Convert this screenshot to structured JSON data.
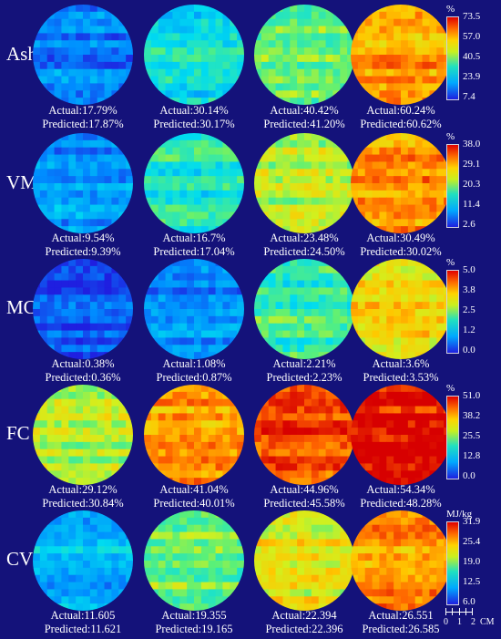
{
  "rows": [
    {
      "label": "Ash",
      "unit": "%",
      "ticks": [
        "73.5",
        "57.0",
        "40.5",
        "23.9",
        "7.4"
      ],
      "samples": [
        {
          "actual": "Actual:17.79%",
          "predicted": "Predicted:17.87%",
          "level": 0.16
        },
        {
          "actual": "Actual:30.14%",
          "predicted": "Predicted:30.17%",
          "level": 0.35
        },
        {
          "actual": "Actual:40.42%",
          "predicted": "Predicted:41.20%",
          "level": 0.5
        },
        {
          "actual": "Actual:60.24%",
          "predicted": "Predicted:60.62%",
          "level": 0.8
        }
      ]
    },
    {
      "label": "VM",
      "unit": "%",
      "ticks": [
        "38.0",
        "29.1",
        "20.3",
        "11.4",
        "2.6"
      ],
      "samples": [
        {
          "actual": "Actual:9.54%",
          "predicted": "Predicted:9.39%",
          "level": 0.2
        },
        {
          "actual": "Actual:16.7%",
          "predicted": "Predicted:17.04%",
          "level": 0.4
        },
        {
          "actual": "Actual:23.48%",
          "predicted": "Predicted:24.50%",
          "level": 0.6
        },
        {
          "actual": "Actual:30.49%",
          "predicted": "Predicted:30.02%",
          "level": 0.79
        }
      ]
    },
    {
      "label": "MC",
      "unit": "%",
      "ticks": [
        "5.0",
        "3.8",
        "2.5",
        "1.2",
        "0.0"
      ],
      "samples": [
        {
          "actual": "Actual:0.38%",
          "predicted": "Predicted:0.36%",
          "level": 0.07
        },
        {
          "actual": "Actual:1.08%",
          "predicted": "Predicted:0.87%",
          "level": 0.19
        },
        {
          "actual": "Actual:2.21%",
          "predicted": "Predicted:2.23%",
          "level": 0.44
        },
        {
          "actual": "Actual:3.6%",
          "predicted": "Predicted:3.53%",
          "level": 0.71
        }
      ]
    },
    {
      "label": "FC",
      "unit": "%",
      "ticks": [
        "51.0",
        "38.2",
        "25.5",
        "12.8",
        "0.0"
      ],
      "samples": [
        {
          "actual": "Actual:29.12%",
          "predicted": "Predicted:30.84%",
          "level": 0.58
        },
        {
          "actual": "Actual:41.04%",
          "predicted": "Predicted:40.01%",
          "level": 0.8
        },
        {
          "actual": "Actual:44.96%",
          "predicted": "Predicted:45.58%",
          "level": 0.9
        },
        {
          "actual": "Actual:54.34%",
          "predicted": "Predicted:48.28%",
          "level": 0.97
        }
      ]
    },
    {
      "label": "CV",
      "unit": "MJ/kg",
      "ticks": [
        "31.9",
        "25.4",
        "19.0",
        "12.5",
        "6.0"
      ],
      "samples": [
        {
          "actual": "Actual:11.605",
          "predicted": "Predicted:11.621",
          "level": 0.26
        },
        {
          "actual": "Actual:19.355",
          "predicted": "Predicted:19.165",
          "level": 0.52
        },
        {
          "actual": "Actual:22.394",
          "predicted": "Predicted:22.396",
          "level": 0.66
        },
        {
          "actual": "Actual:26.551",
          "predicted": "Predicted:26.585",
          "level": 0.8
        }
      ]
    }
  ],
  "scale_bar": {
    "labels": [
      "0",
      "1",
      "2",
      "CM"
    ]
  }
}
